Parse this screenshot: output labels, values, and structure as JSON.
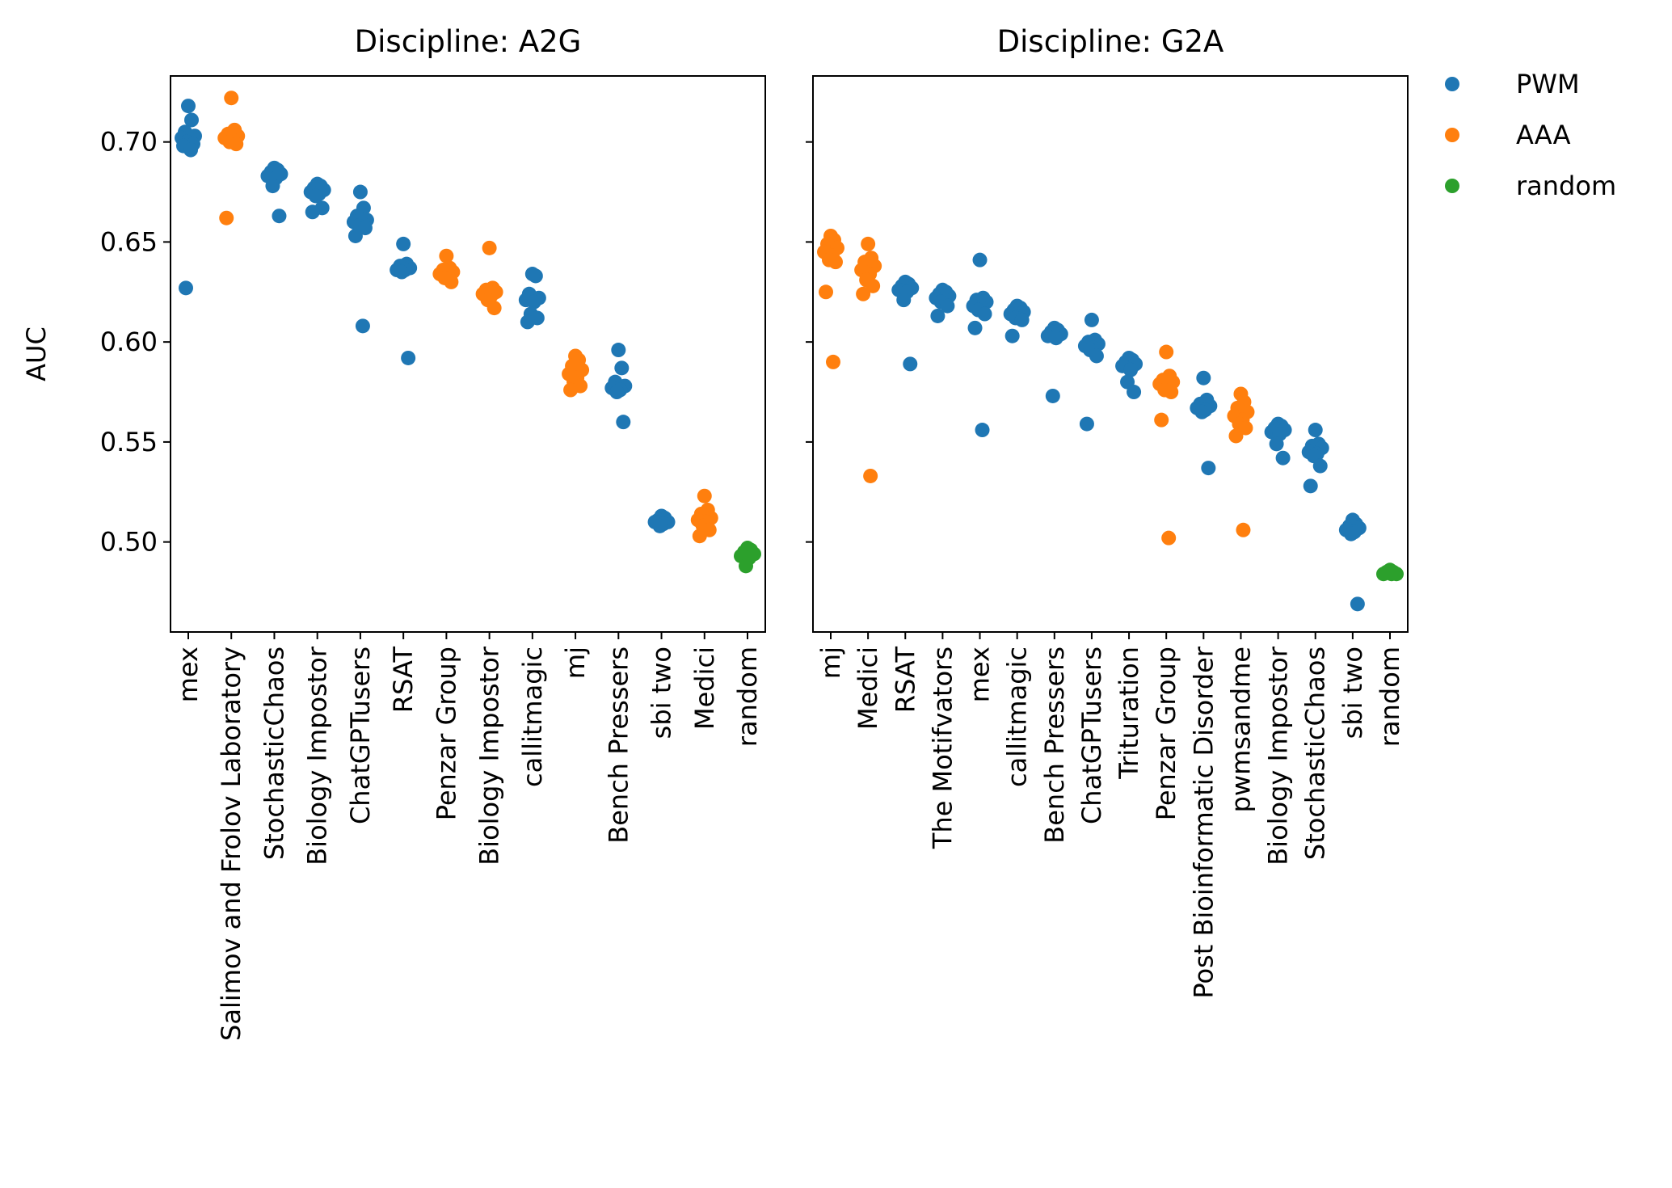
{
  "colors": {
    "PWM": "#1f77b4",
    "AAA": "#ff7f0e",
    "random": "#2ca02c"
  },
  "legend": [
    "PWM",
    "AAA",
    "random"
  ],
  "chart_data": [
    {
      "type": "scatter",
      "title": "Discipline: A2G",
      "ylabel": "AUC",
      "ylim": [
        0.455,
        0.733
      ],
      "yticks": [
        "0.50",
        "0.55",
        "0.60",
        "0.65",
        "0.70"
      ],
      "grid": false,
      "categories": [
        {
          "name": "mex",
          "method": "PWM",
          "values": [
            0.718,
            0.711,
            0.705,
            0.703,
            0.702,
            0.701,
            0.7,
            0.699,
            0.698,
            0.696,
            0.627
          ]
        },
        {
          "name": "Salimov and Frolov Laboratory",
          "method": "AAA",
          "values": [
            0.722,
            0.706,
            0.704,
            0.703,
            0.702,
            0.701,
            0.7,
            0.699,
            0.662
          ]
        },
        {
          "name": "StochasticChaos",
          "method": "PWM",
          "values": [
            0.687,
            0.686,
            0.685,
            0.684,
            0.683,
            0.682,
            0.678,
            0.663
          ]
        },
        {
          "name": "Biology Impostor",
          "method": "PWM",
          "values": [
            0.679,
            0.678,
            0.677,
            0.676,
            0.675,
            0.674,
            0.673,
            0.667,
            0.665
          ]
        },
        {
          "name": "ChatGPTusers",
          "method": "PWM",
          "values": [
            0.675,
            0.667,
            0.663,
            0.661,
            0.66,
            0.659,
            0.658,
            0.657,
            0.653,
            0.608
          ]
        },
        {
          "name": "RSAT",
          "method": "PWM",
          "values": [
            0.649,
            0.639,
            0.638,
            0.637,
            0.636,
            0.636,
            0.635,
            0.592
          ]
        },
        {
          "name": "Penzar Group",
          "method": "AAA",
          "values": [
            0.643,
            0.637,
            0.636,
            0.635,
            0.634,
            0.633,
            0.632,
            0.63
          ]
        },
        {
          "name": "Biology Impostor",
          "method": "AAA",
          "values": [
            0.647,
            0.627,
            0.626,
            0.625,
            0.624,
            0.623,
            0.621,
            0.617
          ]
        },
        {
          "name": "callitmagic",
          "method": "PWM",
          "values": [
            0.634,
            0.633,
            0.624,
            0.622,
            0.621,
            0.62,
            0.614,
            0.612,
            0.61
          ]
        },
        {
          "name": "mj",
          "method": "AAA",
          "values": [
            0.593,
            0.591,
            0.588,
            0.586,
            0.584,
            0.582,
            0.58,
            0.578,
            0.576
          ]
        },
        {
          "name": "Bench Pressers",
          "method": "PWM",
          "values": [
            0.596,
            0.587,
            0.58,
            0.578,
            0.577,
            0.576,
            0.575,
            0.56
          ]
        },
        {
          "name": "sbi two",
          "method": "PWM",
          "values": [
            0.513,
            0.512,
            0.511,
            0.51,
            0.51,
            0.509,
            0.508
          ]
        },
        {
          "name": "Medici",
          "method": "AAA",
          "values": [
            0.523,
            0.516,
            0.514,
            0.512,
            0.511,
            0.51,
            0.508,
            0.506,
            0.503
          ]
        },
        {
          "name": "random",
          "method": "random",
          "values": [
            0.497,
            0.496,
            0.495,
            0.494,
            0.493,
            0.492,
            0.488
          ]
        }
      ]
    },
    {
      "type": "scatter",
      "title": "Discipline: G2A",
      "ylabel": "",
      "ylim": [
        0.455,
        0.733
      ],
      "yticks": [
        "",
        "",
        "",
        "",
        ""
      ],
      "grid": false,
      "categories": [
        {
          "name": "mj",
          "method": "AAA",
          "values": [
            0.653,
            0.651,
            0.649,
            0.647,
            0.645,
            0.643,
            0.641,
            0.64,
            0.625,
            0.59
          ]
        },
        {
          "name": "Medici",
          "method": "AAA",
          "values": [
            0.649,
            0.642,
            0.64,
            0.638,
            0.636,
            0.634,
            0.631,
            0.628,
            0.624,
            0.533
          ]
        },
        {
          "name": "RSAT",
          "method": "PWM",
          "values": [
            0.63,
            0.629,
            0.628,
            0.627,
            0.626,
            0.625,
            0.621,
            0.589
          ]
        },
        {
          "name": "The Motifvators",
          "method": "PWM",
          "values": [
            0.626,
            0.625,
            0.624,
            0.623,
            0.622,
            0.621,
            0.62,
            0.618,
            0.613
          ]
        },
        {
          "name": "mex",
          "method": "PWM",
          "values": [
            0.641,
            0.622,
            0.621,
            0.62,
            0.618,
            0.617,
            0.616,
            0.614,
            0.607,
            0.556
          ]
        },
        {
          "name": "callitmagic",
          "method": "PWM",
          "values": [
            0.618,
            0.617,
            0.616,
            0.615,
            0.614,
            0.613,
            0.612,
            0.611,
            0.603
          ]
        },
        {
          "name": "Bench Pressers",
          "method": "PWM",
          "values": [
            0.607,
            0.606,
            0.605,
            0.604,
            0.603,
            0.602,
            0.573
          ]
        },
        {
          "name": "ChatGPTusers",
          "method": "PWM",
          "values": [
            0.611,
            0.601,
            0.6,
            0.599,
            0.598,
            0.597,
            0.596,
            0.593,
            0.559
          ]
        },
        {
          "name": "Trituration",
          "method": "PWM",
          "values": [
            0.592,
            0.591,
            0.59,
            0.589,
            0.588,
            0.586,
            0.58,
            0.575
          ]
        },
        {
          "name": "Penzar Group",
          "method": "AAA",
          "values": [
            0.595,
            0.583,
            0.581,
            0.58,
            0.579,
            0.577,
            0.576,
            0.575,
            0.561,
            0.502
          ]
        },
        {
          "name": "Post Bioinformatic Disorder",
          "method": "PWM",
          "values": [
            0.582,
            0.571,
            0.569,
            0.568,
            0.567,
            0.566,
            0.565,
            0.537
          ]
        },
        {
          "name": "pwmsandme",
          "method": "AAA",
          "values": [
            0.574,
            0.57,
            0.567,
            0.565,
            0.563,
            0.561,
            0.559,
            0.557,
            0.553,
            0.506
          ]
        },
        {
          "name": "Biology Impostor",
          "method": "PWM",
          "values": [
            0.559,
            0.558,
            0.557,
            0.556,
            0.555,
            0.554,
            0.549,
            0.542
          ]
        },
        {
          "name": "StochasticChaos",
          "method": "PWM",
          "values": [
            0.556,
            0.549,
            0.548,
            0.547,
            0.545,
            0.544,
            0.543,
            0.538,
            0.528
          ]
        },
        {
          "name": "sbi two",
          "method": "PWM",
          "values": [
            0.511,
            0.509,
            0.508,
            0.507,
            0.506,
            0.505,
            0.504,
            0.469
          ]
        },
        {
          "name": "random",
          "method": "random",
          "values": [
            0.486,
            0.485,
            0.485,
            0.484,
            0.484,
            0.484
          ]
        }
      ]
    }
  ]
}
